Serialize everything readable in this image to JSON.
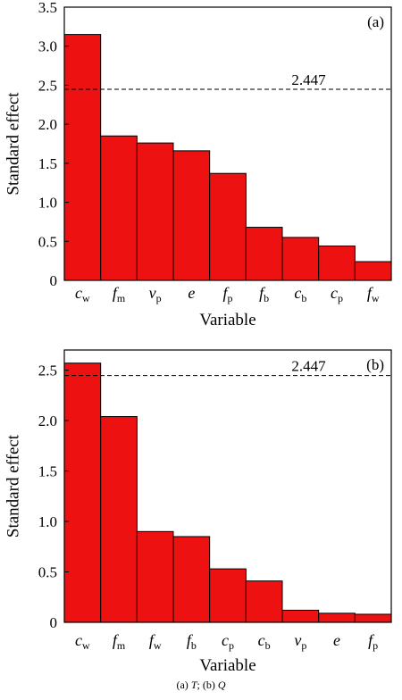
{
  "colors": {
    "bar_fill": "#ee1111",
    "bar_stroke": "#000000",
    "threshold_line": "#000000",
    "axis": "#000000"
  },
  "caption": {
    "prefix_a": "(a) ",
    "var_a": "T",
    "sep": "; (b) ",
    "var_b": "Q"
  },
  "chart_data": [
    {
      "type": "bar",
      "panel_label": "(a)",
      "ylabel": "Standard effect",
      "xlabel": "Variable",
      "ylim": [
        0,
        3.5
      ],
      "yticks": [
        0,
        0.5,
        1.0,
        1.5,
        2.0,
        2.5,
        3.0,
        3.5
      ],
      "ytick_labels": [
        "0",
        "0.5",
        "1.0",
        "1.5",
        "2.0",
        "2.5",
        "3.0",
        "3.5"
      ],
      "categories": [
        {
          "base": "c",
          "sub": "w"
        },
        {
          "base": "f",
          "sub": "m"
        },
        {
          "base": "v",
          "sub": "p"
        },
        {
          "base": "e",
          "sub": ""
        },
        {
          "base": "f",
          "sub": "p"
        },
        {
          "base": "f",
          "sub": "b"
        },
        {
          "base": "c",
          "sub": "b"
        },
        {
          "base": "c",
          "sub": "p"
        },
        {
          "base": "f",
          "sub": "w"
        }
      ],
      "values": [
        3.15,
        1.85,
        1.76,
        1.66,
        1.37,
        0.68,
        0.55,
        0.44,
        0.24
      ],
      "threshold": 2.447,
      "threshold_label": "2.447",
      "grid": false
    },
    {
      "type": "bar",
      "panel_label": "(b)",
      "ylabel": "Standard effect",
      "xlabel": "Variable",
      "ylim": [
        0,
        2.7
      ],
      "yticks": [
        0,
        0.5,
        1.0,
        1.5,
        2.0,
        2.5
      ],
      "ytick_labels": [
        "0",
        "0.5",
        "1.0",
        "1.5",
        "2.0",
        "2.5"
      ],
      "categories": [
        {
          "base": "c",
          "sub": "w"
        },
        {
          "base": "f",
          "sub": "m"
        },
        {
          "base": "f",
          "sub": "w"
        },
        {
          "base": "f",
          "sub": "b"
        },
        {
          "base": "c",
          "sub": "p"
        },
        {
          "base": "c",
          "sub": "b"
        },
        {
          "base": "v",
          "sub": "p"
        },
        {
          "base": "e",
          "sub": ""
        },
        {
          "base": "f",
          "sub": "p"
        }
      ],
      "values": [
        2.57,
        2.04,
        0.9,
        0.85,
        0.53,
        0.41,
        0.12,
        0.09,
        0.08
      ],
      "threshold": 2.447,
      "threshold_label": "2.447",
      "grid": false
    }
  ]
}
